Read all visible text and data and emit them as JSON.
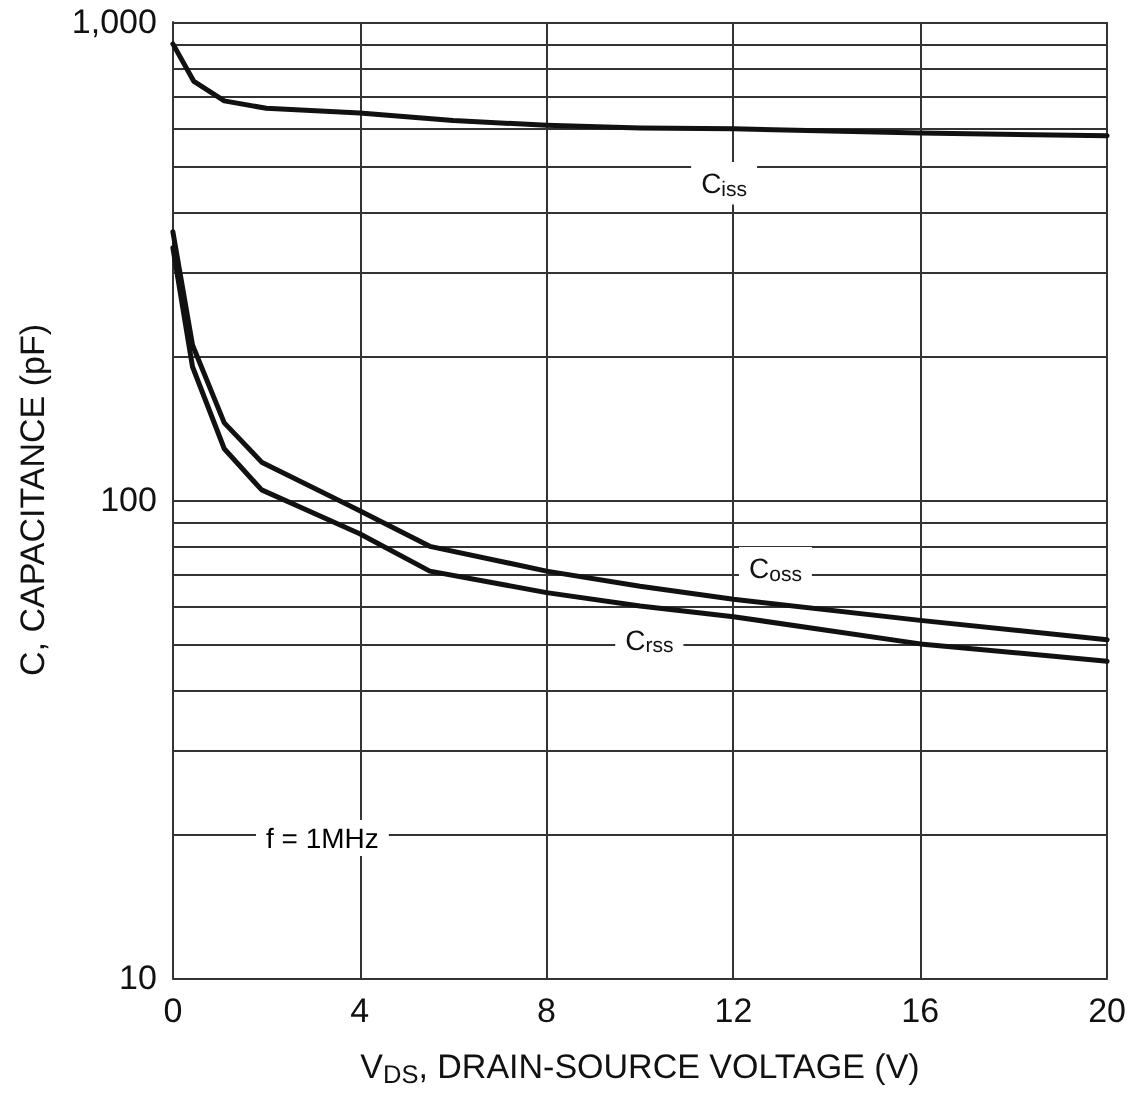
{
  "chart_data": {
    "type": "line",
    "xlabel": "V$_{DS}$, DRAIN-SOURCE VOLTAGE (V)",
    "ylabel": "C, CAPACITANCE (pF)",
    "log": "y",
    "grid": true,
    "marker": "none",
    "line_style": "solid",
    "xlim": [
      0,
      20
    ],
    "xticks": [
      0,
      4,
      8,
      12,
      16,
      20
    ],
    "ylim": [
      10,
      1000
    ],
    "yticks": [
      10,
      {
        "value": 20,
        "label": null
      },
      {
        "value": 30,
        "label": null
      },
      {
        "value": 40,
        "label": null
      },
      {
        "value": 50,
        "label": null
      },
      {
        "value": 60,
        "label": null
      },
      {
        "value": 70,
        "label": null
      },
      {
        "value": 80,
        "label": null
      },
      {
        "value": 90,
        "label": null
      },
      100,
      {
        "value": 200,
        "label": null
      },
      {
        "value": 300,
        "label": null
      },
      {
        "value": 400,
        "label": null
      },
      {
        "value": 500,
        "label": null
      },
      {
        "value": 600,
        "label": null
      },
      {
        "value": 700,
        "label": null
      },
      {
        "value": 800,
        "label": null
      },
      {
        "value": 900,
        "label": null
      },
      {
        "value": 1000,
        "label": "1,000"
      }
    ],
    "series": [
      {
        "color": "#111111",
        "x": [
          0,
          0.45,
          1.1,
          2,
          4,
          6,
          8,
          10,
          12,
          16,
          20
        ],
        "values": [
          900,
          751,
          684,
          660,
          645,
          622,
          608,
          600,
          598,
          586,
          578
        ]
      },
      {
        "color": "#111111",
        "x": [
          0,
          0.42,
          1.1,
          1.9,
          4,
          5.5,
          8,
          10,
          12,
          16,
          20
        ],
        "values": [
          364,
          211,
          145,
          120,
          95,
          80,
          71,
          66,
          62,
          56,
          51
        ]
      },
      {
        "color": "#111111",
        "x": [
          0,
          0.42,
          1.1,
          1.9,
          4,
          5.5,
          8,
          10,
          12,
          16,
          20
        ],
        "values": [
          337,
          190,
          128,
          105,
          85,
          71,
          64,
          60,
          57,
          50,
          46
        ]
      }
    ],
    "annotations": [
      {
        "text": "C$_{iss}$",
        "x": 11.8,
        "y": 460
      },
      {
        "text": "C$_{oss}$",
        "x": 12.9,
        "y": 72
      },
      {
        "text": "C$_{rss}$",
        "x": 10.2,
        "y": 51
      },
      "f = 1MHz"
    ]
  }
}
